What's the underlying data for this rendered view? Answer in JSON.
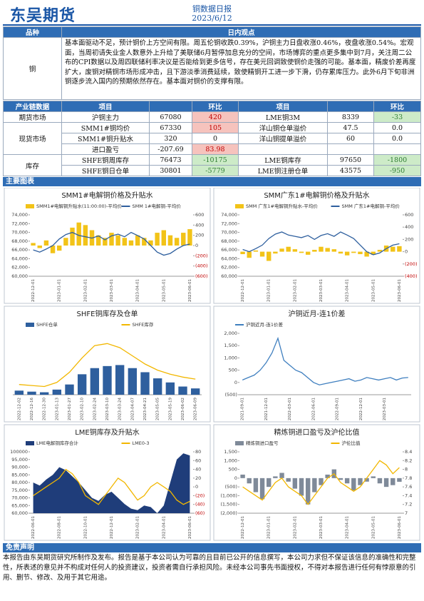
{
  "header": {
    "logo": "东吴期货",
    "title": "铜数据日报",
    "date": "2023/6/12"
  },
  "view": {
    "col1": "品种",
    "col2": "日内观点",
    "variety": "铜",
    "text": "基本面驱动不足，预计铜价上方空间有限。周五伦铜收跌0.39%，沪铜主力日盘收涨0.46%，夜盘收涨0.54%。宏观面，当周初请失业金人数意外上升给了美联储6月暂停加息充分的空间，市场博弈的重点更多集中到7月，关注周二公布的CPI数据以及周四联储利率决议是否能给到更多信号，存在美元回调致使铜价走强的可能。基本面，精废价差再度扩大，废铜对精铜市场形成冲击，且下游淡季消费延续，致使精铜开工进一步下滑，仍存累库压力。此外6月下旬非洲铜逐步流入国内的预期依然存在。基本面对铜价的支撑有限。"
  },
  "table": {
    "headers": {
      "section": "产业链数据",
      "item1": "项目",
      "change1": "环比",
      "item2": "项目",
      "change2": "环比"
    },
    "change_colors": {
      "up_bg": "#f6c3bd",
      "up_text": "#c00000",
      "down_bg": "#cdebc8",
      "down_text": "#2e7d32"
    },
    "groups": [
      {
        "name": "期货市场",
        "rows": [
          {
            "item1": "沪铜主力",
            "value1": 67080,
            "change1": 420,
            "item2": "LME铜3M",
            "value2": 8339,
            "change2": -33
          }
        ]
      },
      {
        "name": "现货市场",
        "rows": [
          {
            "item1": "SMM1#铜均价",
            "value1": 67330,
            "change1": 105,
            "item2": "洋山铜仓单溢价",
            "value2": 47.5,
            "change2": "0.0"
          },
          {
            "item1": "SMM1#铜升贴水",
            "value1": 320,
            "change1": 0,
            "item2": "洋山铜提单溢价",
            "value2": 60,
            "change2": "0.0"
          },
          {
            "item1": "进口盈亏",
            "value1": -207.69,
            "change1": 83.98
          }
        ]
      },
      {
        "name": "库存",
        "rows": [
          {
            "item1": "SHFE铜周库存",
            "value1": 76473,
            "change1": -10175,
            "item2": "LME铜库存",
            "value2": 97650,
            "change2": -1800
          },
          {
            "item1": "SHFE铜日仓单",
            "value1": 30801,
            "change1": -5779,
            "item2": "LME铜注册仓单",
            "value2": 43575,
            "change2": -950
          }
        ]
      }
    ]
  },
  "charts_title": "主要图表",
  "charts": [
    {
      "type": "combo",
      "title": "SMM1#电解铜价格及升贴水",
      "categories": [
        "2022-12-01",
        null,
        null,
        null,
        "2023-01-01",
        null,
        null,
        null,
        "2023-02-01",
        null,
        null,
        null,
        "2023-03-01",
        null,
        null,
        null,
        "2023-04-01",
        null,
        null,
        null,
        "2023-05-01",
        null,
        null,
        null,
        "2023-06-01"
      ],
      "ylim": [
        60000,
        74000
      ],
      "yticks": [
        {
          "value": 60000,
          "label": "60,000"
        },
        {
          "value": 62000,
          "label": "62,000"
        },
        {
          "value": 64000,
          "label": "64,000"
        },
        {
          "value": 66000,
          "label": "66,000"
        },
        {
          "value": 68000,
          "label": "68,000"
        },
        {
          "value": 70000,
          "label": "70,000"
        },
        {
          "value": 72000,
          "label": "72,000"
        },
        {
          "value": 74000,
          "label": "74,000"
        }
      ],
      "y2lim": [
        -600,
        600
      ],
      "y2ticks": [
        {
          "value": -600,
          "label": "(600)"
        },
        {
          "value": -400,
          "label": "(400)"
        },
        {
          "value": -200,
          "label": "(200)"
        },
        0,
        200,
        400,
        600
      ],
      "series": [
        {
          "name": "SMM1#电解铜升贴水(11:00:00)-平均价",
          "kind": "bar",
          "axis": "y2",
          "color": "#f2c318",
          "values": [
            50,
            -50,
            100,
            -150,
            -100,
            150,
            350,
            450,
            400,
            300,
            200,
            150,
            250,
            200,
            150,
            100,
            200,
            150,
            100,
            250,
            300,
            200,
            150,
            250,
            320
          ]
        },
        {
          "name": "SMM 1#电解铜-平均价",
          "kind": "line",
          "color": "#2e5f9e",
          "values": [
            66000,
            65500,
            66200,
            67000,
            68500,
            69500,
            70000,
            69300,
            69000,
            68700,
            69200,
            68300,
            69200,
            69600,
            69000,
            70000,
            69300,
            68500,
            67000,
            65500,
            64800,
            65200,
            66200,
            67000,
            67330
          ]
        }
      ]
    },
    {
      "type": "combo",
      "title": "SMM广东1#电解铜价格及升贴水",
      "categories": [
        "2022-12-01",
        null,
        null,
        null,
        "2023-01-01",
        null,
        null,
        null,
        "2023-02-01",
        null,
        null,
        null,
        "2023-03-01",
        null,
        null,
        null,
        "2023-04-01",
        null,
        null,
        null,
        "2023-05-01",
        null,
        null,
        null,
        "2023-06-01"
      ],
      "ylim": [
        60000,
        74000
      ],
      "yticks": [
        {
          "value": 60000,
          "label": "60,000"
        },
        {
          "value": 62000,
          "label": "62,000"
        },
        {
          "value": 64000,
          "label": "64,000"
        },
        {
          "value": 66000,
          "label": "66,000"
        },
        {
          "value": 68000,
          "label": "68,000"
        },
        {
          "value": 70000,
          "label": "70,000"
        },
        {
          "value": 72000,
          "label": "72,000"
        },
        {
          "value": 74000,
          "label": "74,000"
        }
      ],
      "y2lim": [
        -400,
        600
      ],
      "y2ticks": [
        {
          "value": -400,
          "label": "(400)"
        },
        {
          "value": -200,
          "label": "(200)"
        },
        0,
        200,
        400,
        600
      ],
      "series": [
        {
          "name": "SMM 广东1#电解铜升贴水-平均价",
          "kind": "bar",
          "axis": "y2",
          "color": "#f2c318",
          "values": [
            -40,
            -100,
            20,
            -80,
            -150,
            -30,
            50,
            80,
            40,
            -20,
            -50,
            30,
            80,
            60,
            40,
            -30,
            -60,
            -20,
            -40,
            -80,
            -50,
            30,
            100,
            80,
            90
          ]
        },
        {
          "name": "SMM 广东1#电解铜-平均价",
          "kind": "line",
          "color": "#2e5f9e",
          "values": [
            66100,
            65600,
            66300,
            67100,
            68600,
            69600,
            70100,
            69400,
            69100,
            68800,
            69300,
            68400,
            69300,
            69700,
            69100,
            70100,
            69400,
            68600,
            67100,
            65600,
            64900,
            65300,
            66300,
            67100,
            67400
          ]
        }
      ]
    },
    {
      "type": "combo",
      "title": "SHFE铜库存及仓单",
      "categories": [
        "2022-12-02",
        "2022-12-16",
        "2022-12-30",
        "2023-01-13",
        "2023-01-27",
        "2023-02-10",
        "2023-02-24",
        "2023-03-10",
        "2023-03-24",
        "2023-04-07",
        "2023-04-21",
        "2023-05-05",
        "2023-05-19",
        "2023-06-02",
        "2023-06-09"
      ],
      "ylim": [
        0,
        300000
      ],
      "series": [
        {
          "name": "SHFE仓单",
          "kind": "bar",
          "color": "#2e5f9e",
          "values": [
            20000,
            15000,
            12000,
            25000,
            50000,
            100000,
            130000,
            140000,
            145000,
            130000,
            110000,
            80000,
            60000,
            40000,
            30801
          ]
        },
        {
          "name": "SHFE库存",
          "kind": "line",
          "color": "#f2b700",
          "values": [
            50000,
            45000,
            40000,
            60000,
            110000,
            180000,
            240000,
            250000,
            230000,
            190000,
            150000,
            120000,
            100000,
            86000,
            76473
          ]
        }
      ]
    },
    {
      "type": "combo",
      "title": "沪铜近月-连1价差",
      "categories": [
        "2021-09-01",
        null,
        null,
        null,
        "2021-12-01",
        null,
        null,
        null,
        "2022-03-01",
        null,
        null,
        null,
        "2022-06-01",
        null,
        null,
        null,
        "2022-09-01",
        null,
        null,
        null,
        "2022-12-01",
        null,
        null,
        null,
        "2023-03-01",
        null,
        null,
        null,
        null
      ],
      "ylim": [
        -500,
        2000
      ],
      "yticks": [
        {
          "value": -500,
          "label": "(500)"
        },
        0,
        500,
        {
          "value": 1000,
          "label": "1,000"
        },
        {
          "value": 1500,
          "label": "1,500"
        },
        {
          "value": 2000,
          "label": "2,000"
        }
      ],
      "series": [
        {
          "name": "沪铜近月-连1价差",
          "kind": "line",
          "color": "#3f7fbf",
          "values": [
            100,
            200,
            300,
            500,
            800,
            1200,
            1800,
            900,
            700,
            500,
            400,
            200,
            0,
            -100,
            -50,
            0,
            50,
            100,
            150,
            50,
            100,
            200,
            150,
            100,
            150,
            200,
            100,
            180,
            200
          ]
        }
      ]
    },
    {
      "type": "combo",
      "title": "LME铜库存及升贴水",
      "categories": [
        "2022-06-01",
        null,
        null,
        null,
        "2022-08-01",
        null,
        null,
        null,
        "2022-10-01",
        null,
        null,
        null,
        "2022-12-01",
        null,
        null,
        null,
        "2023-02-01",
        null,
        null,
        null,
        "2023-04-01",
        null,
        null,
        null,
        "2023-06-01"
      ],
      "ylim": [
        60000,
        100000
      ],
      "yticks": [
        {
          "value": 60000,
          "label": "60,000"
        },
        {
          "value": 65000,
          "label": "65,000"
        },
        {
          "value": 70000,
          "label": "70,000"
        },
        {
          "value": 75000,
          "label": "75,000"
        },
        {
          "value": 80000,
          "label": "80,000"
        },
        {
          "value": 85000,
          "label": "85,000"
        },
        {
          "value": 90000,
          "label": "90,000"
        },
        {
          "value": 95000,
          "label": "95,000"
        },
        {
          "value": 100000,
          "label": "100000"
        }
      ],
      "y2lim": [
        -60,
        80
      ],
      "y2ticks": [
        {
          "value": -60,
          "label": "(60)"
        },
        {
          "value": -40,
          "label": "(40)"
        },
        {
          "value": -20,
          "label": "(20)"
        },
        0,
        20,
        40,
        60,
        80
      ],
      "series": [
        {
          "name": "LME电解铜库存合计",
          "kind": "area",
          "color": "#1f3d7a",
          "values": [
            80000,
            78000,
            82000,
            85000,
            90000,
            88000,
            84000,
            80000,
            75000,
            70000,
            68000,
            72000,
            74000,
            70000,
            66000,
            63000,
            62000,
            65000,
            64000,
            60000,
            65000,
            80000,
            95000,
            99000,
            97650
          ]
        },
        {
          "name": "LME0-3",
          "kind": "line",
          "axis": "y2",
          "color": "#f2b700",
          "values": [
            -20,
            -10,
            0,
            10,
            20,
            40,
            30,
            10,
            -20,
            -30,
            -40,
            -20,
            0,
            20,
            10,
            -10,
            -30,
            -20,
            0,
            10,
            0,
            -10,
            -30,
            -40,
            -33
          ]
        }
      ]
    },
    {
      "type": "combo",
      "title": "精炼铜进口盈亏及沪伦比值",
      "categories": [
        "2022-12-01",
        null,
        null,
        null,
        "2023-01-01",
        null,
        null,
        null,
        "2023-02-01",
        null,
        null,
        null,
        "2023-03-01",
        null,
        null,
        null,
        "2023-04-01",
        null,
        null,
        null,
        "2023-05-01",
        null,
        null,
        null,
        "2023-06-01"
      ],
      "ylim": [
        -2000,
        1500
      ],
      "yticks": [
        {
          "value": -2000,
          "label": "(2,000)"
        },
        {
          "value": -1500,
          "label": "(1,500)"
        },
        {
          "value": -1000,
          "label": "(1,000)"
        },
        {
          "value": -500,
          "label": "(500)"
        },
        0,
        500,
        {
          "value": 1000,
          "label": "1,000"
        },
        {
          "value": 1500,
          "label": "1,500"
        }
      ],
      "y2lim": [
        7,
        8.4
      ],
      "y2ticks": [
        7,
        7.2,
        7.4,
        7.6,
        7.8,
        8,
        8.2,
        8.4
      ],
      "series": [
        {
          "name": "精炼铜进口盈亏",
          "kind": "bar",
          "color": "#7f8a99",
          "values": [
            200,
            -300,
            -800,
            -1200,
            -500,
            100,
            300,
            -200,
            -600,
            -1000,
            -1500,
            -800,
            -400,
            200,
            500,
            -100,
            -300,
            -700,
            -400,
            -200,
            100,
            -300,
            -500,
            -400,
            -207.69
          ]
        },
        {
          "name": "沪伦比值",
          "kind": "line",
          "axis": "y2",
          "color": "#f2b700",
          "values": [
            7.6,
            7.5,
            7.4,
            7.3,
            7.5,
            7.7,
            7.8,
            7.6,
            7.5,
            7.4,
            7.2,
            7.4,
            7.6,
            7.8,
            7.9,
            7.7,
            7.6,
            7.5,
            7.6,
            7.8,
            8.0,
            8.2,
            8.1,
            7.9,
            8.04
          ]
        }
      ]
    }
  ],
  "disclaimer": {
    "title": "免责声明",
    "text": "本报告由东吴期货研究所制作及发布。报告是基于本公司认为可靠的且目前已公开的信息撰写，本公司力求但不保证该信息的准确性和完整性，所表述的意见并不构成对任何人的投资建议，投资者需自行承担风险。未经本公司事先书面授权，不得对本报告进行任何有悖原意的引用、删节、修改、及用于其它用途。"
  }
}
